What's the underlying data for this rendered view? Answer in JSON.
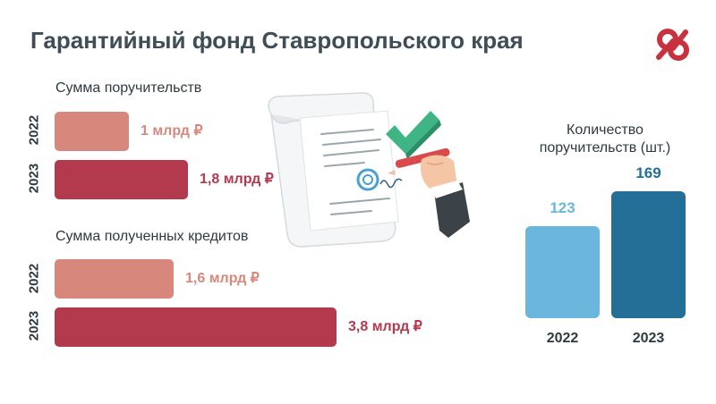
{
  "title": "Гарантийный фонд Ставропольского края",
  "logo_text": "26",
  "colors": {
    "bar_2022_pink": "#d8877c",
    "bar_2023_red": "#b33a4c",
    "bar_2022_blue": "#6bb6dc",
    "bar_2023_blue": "#236f98",
    "title": "#3f4d57",
    "logo": "#c8323f"
  },
  "chart_data": [
    {
      "type": "bar",
      "orientation": "horizontal",
      "title": "Сумма поручительств",
      "categories": [
        "2022",
        "2023"
      ],
      "values": [
        1,
        1.8
      ],
      "value_labels": [
        "1 млрд ₽",
        "1,8 млрд ₽"
      ],
      "unit": "млрд ₽"
    },
    {
      "type": "bar",
      "orientation": "horizontal",
      "title": "Сумма полученных кредитов",
      "categories": [
        "2022",
        "2023"
      ],
      "values": [
        1.6,
        3.8
      ],
      "value_labels": [
        "1,6 млрд ₽",
        "3,8 млрд ₽"
      ],
      "unit": "млрд ₽"
    },
    {
      "type": "bar",
      "orientation": "vertical",
      "title": "Количество поручительств (шт.)",
      "categories": [
        "2022",
        "2023"
      ],
      "values": [
        123,
        169
      ],
      "value_labels": [
        "123",
        "169"
      ]
    }
  ],
  "icons": [
    "document-signing-icon",
    "checkmark-icon",
    "hand-with-pen-icon",
    "logo-26-icon"
  ]
}
